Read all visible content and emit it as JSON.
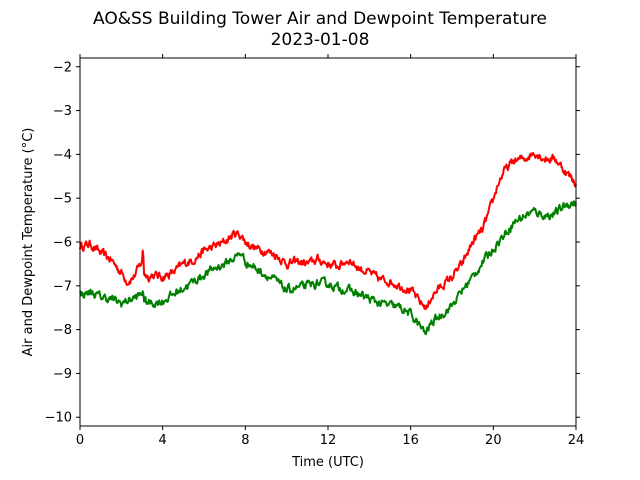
{
  "chart_data": {
    "type": "line",
    "title": [
      "AO&SS Building Tower Air and Dewpoint Temperature",
      "2023-01-08"
    ],
    "xlabel": "Time (UTC)",
    "ylabel": "Air and Dewpoint Temperature (°C)",
    "xlim": [
      0,
      24
    ],
    "ylim": [
      -10.2,
      -1.8
    ],
    "xticks": [
      0,
      4,
      8,
      12,
      16,
      20,
      24
    ],
    "xtick_labels": [
      "0",
      "4",
      "8",
      "12",
      "16",
      "20",
      "24"
    ],
    "yticks": [
      -10,
      -9,
      -8,
      -7,
      -6,
      -5,
      -4,
      -3,
      -2
    ],
    "ytick_labels": [
      "−10",
      "−9",
      "−8",
      "−7",
      "−6",
      "−5",
      "−4",
      "−3",
      "−2"
    ],
    "grid": false,
    "legend": "none",
    "series": [
      {
        "color": "#ff0000",
        "x": [
          0,
          0.5,
          1.0,
          1.5,
          2.0,
          2.3,
          2.6,
          3.0,
          3.05,
          3.1,
          3.3,
          3.5,
          4.0,
          4.5,
          5.0,
          5.5,
          6.0,
          6.5,
          7.0,
          7.5,
          7.8,
          8.0,
          8.5,
          9.0,
          9.5,
          10.0,
          10.5,
          11.0,
          11.5,
          12.0,
          12.5,
          13.0,
          13.5,
          14.0,
          14.5,
          15.0,
          15.5,
          16.0,
          16.5,
          16.8,
          17.0,
          17.5,
          18.0,
          18.5,
          19.0,
          19.5,
          20.0,
          20.2,
          20.5,
          21.0,
          21.5,
          22.0,
          22.5,
          23.0,
          23.5,
          24.0
        ],
        "y": [
          -6.1,
          -6.05,
          -6.25,
          -6.4,
          -6.7,
          -6.9,
          -6.8,
          -6.45,
          -6.1,
          -6.7,
          -6.8,
          -6.75,
          -6.8,
          -6.7,
          -6.5,
          -6.4,
          -6.2,
          -6.1,
          -6.0,
          -5.8,
          -5.85,
          -6.0,
          -6.15,
          -6.2,
          -6.3,
          -6.5,
          -6.45,
          -6.5,
          -6.4,
          -6.5,
          -6.55,
          -6.4,
          -6.6,
          -6.7,
          -6.85,
          -6.9,
          -7.0,
          -7.1,
          -7.4,
          -7.5,
          -7.25,
          -7.0,
          -6.8,
          -6.5,
          -6.0,
          -5.7,
          -5.05,
          -4.7,
          -4.4,
          -4.15,
          -4.1,
          -3.95,
          -4.1,
          -4.1,
          -4.4,
          -4.65
        ]
      },
      {
        "color": "#008000",
        "x": [
          0,
          0.5,
          1.0,
          1.5,
          2.0,
          2.5,
          3.0,
          3.05,
          3.1,
          3.5,
          4.0,
          4.5,
          5.0,
          5.5,
          6.0,
          6.5,
          7.0,
          7.5,
          7.8,
          8.0,
          8.5,
          9.0,
          9.5,
          10.0,
          10.5,
          11.0,
          11.5,
          12.0,
          12.5,
          13.0,
          13.5,
          14.0,
          14.5,
          15.0,
          15.5,
          16.0,
          16.5,
          16.7,
          17.0,
          17.5,
          18.0,
          18.5,
          19.0,
          19.5,
          20.0,
          20.5,
          21.0,
          21.5,
          22.0,
          22.5,
          23.0,
          23.5,
          24.0
        ],
        "y": [
          -7.2,
          -7.15,
          -7.25,
          -7.3,
          -7.4,
          -7.3,
          -7.2,
          -7.0,
          -7.35,
          -7.4,
          -7.35,
          -7.2,
          -7.05,
          -6.9,
          -6.75,
          -6.6,
          -6.5,
          -6.35,
          -6.25,
          -6.45,
          -6.6,
          -6.75,
          -6.9,
          -7.1,
          -7.05,
          -7.0,
          -6.95,
          -6.95,
          -7.05,
          -7.1,
          -7.2,
          -7.3,
          -7.4,
          -7.45,
          -7.5,
          -7.65,
          -7.95,
          -8.1,
          -7.85,
          -7.65,
          -7.45,
          -7.1,
          -6.8,
          -6.45,
          -6.15,
          -5.85,
          -5.55,
          -5.4,
          -5.3,
          -5.4,
          -5.35,
          -5.15,
          -5.1
        ]
      }
    ]
  }
}
